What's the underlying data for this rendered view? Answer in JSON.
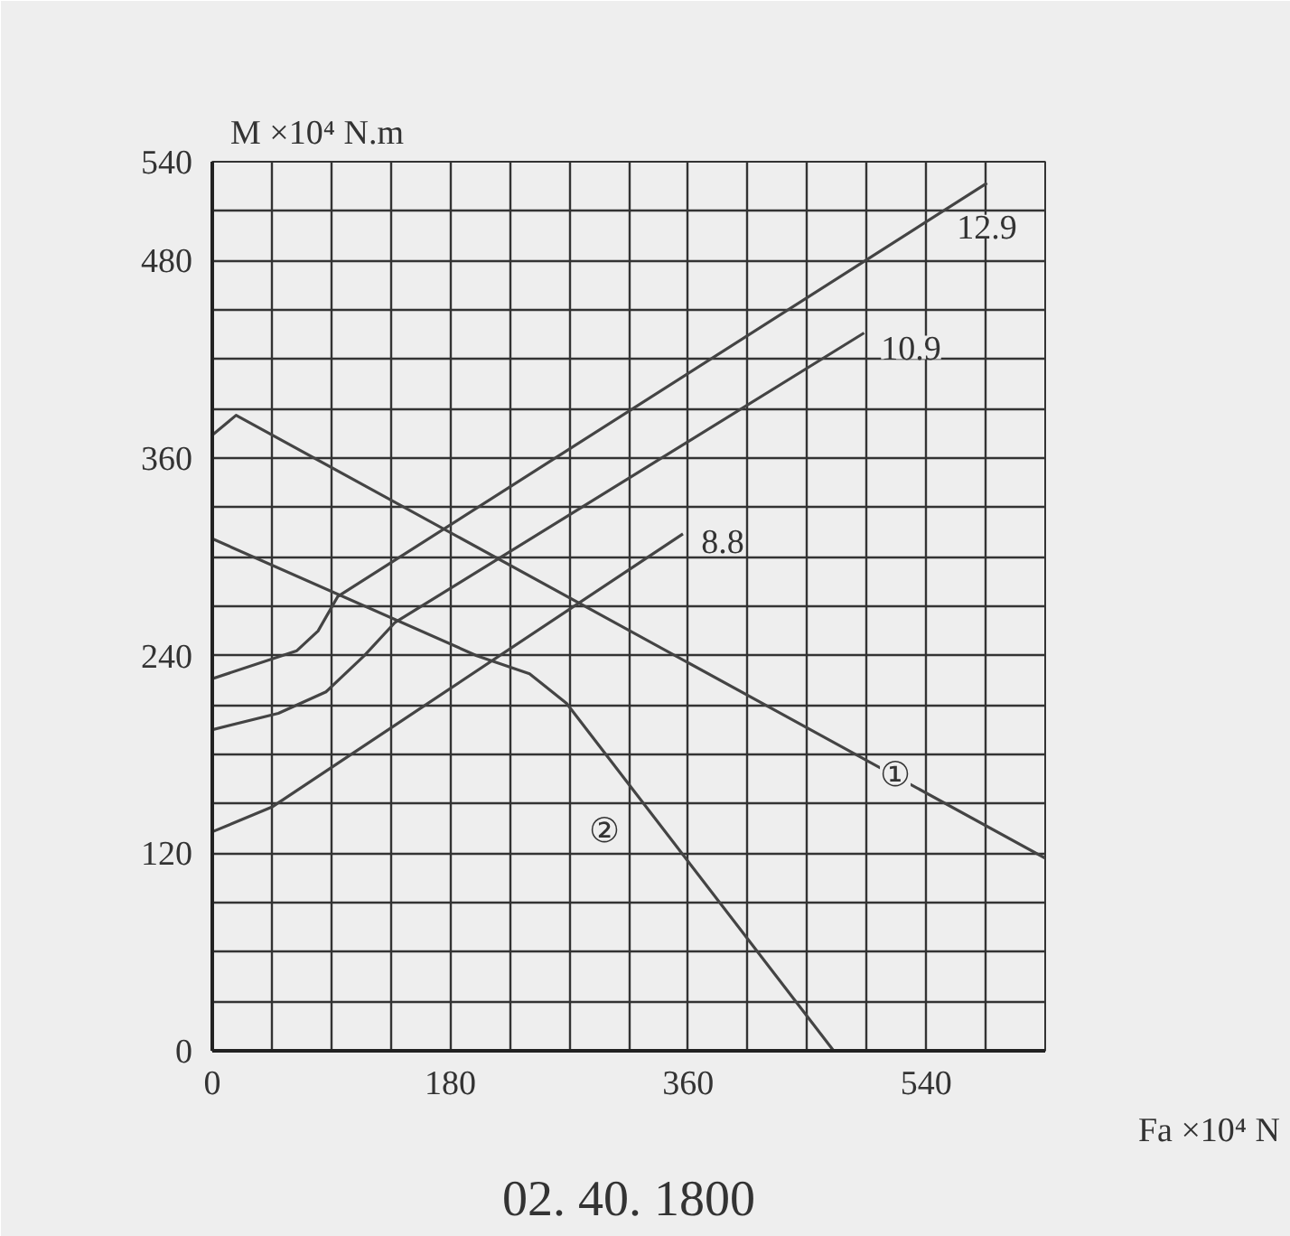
{
  "chart_data": {
    "type": "line",
    "xlabel": "Fa ×10⁴ N",
    "ylabel": "M ×10⁴ N.m",
    "xlim": [
      0,
      630
    ],
    "ylim": [
      0,
      540
    ],
    "xticks": [
      0,
      {
        "value": 45,
        "label": null
      },
      {
        "value": 90,
        "label": null
      },
      {
        "value": 135,
        "label": null
      },
      180,
      {
        "value": 225,
        "label": null
      },
      {
        "value": 270,
        "label": null
      },
      {
        "value": 315,
        "label": null
      },
      360,
      {
        "value": 405,
        "label": null
      },
      {
        "value": 450,
        "label": null
      },
      {
        "value": 495,
        "label": null
      },
      540,
      {
        "value": 585,
        "label": null
      },
      {
        "value": 630,
        "label": null
      }
    ],
    "yticks": [
      0,
      {
        "value": 30,
        "label": null
      },
      {
        "value": 60,
        "label": null
      },
      {
        "value": 90,
        "label": null
      },
      120,
      {
        "value": 150,
        "label": null
      },
      {
        "value": 180,
        "label": null
      },
      {
        "value": 210,
        "label": null
      },
      240,
      {
        "value": 270,
        "label": null
      },
      {
        "value": 300,
        "label": null
      },
      {
        "value": 330,
        "label": null
      },
      360,
      {
        "value": 390,
        "label": null
      },
      {
        "value": 420,
        "label": null
      },
      {
        "value": 450,
        "label": null
      },
      480,
      {
        "value": 510,
        "label": null
      },
      540
    ],
    "grid": true,
    "legend": false,
    "marker": "none",
    "line_style": "solid",
    "series": [
      {
        "name": "①",
        "color": "#444444",
        "x": [
          0,
          18,
          630
        ],
        "values": [
          374,
          386,
          117
        ]
      },
      {
        "name": "②",
        "color": "#444444",
        "x": [
          0,
          200,
          240,
          268,
          470
        ],
        "values": [
          311,
          240,
          229,
          211,
          0
        ]
      },
      {
        "name": "8.8",
        "color": "#444444",
        "x": [
          0,
          45,
          356
        ],
        "values": [
          133,
          148,
          314
        ]
      },
      {
        "name": "10.9",
        "color": "#444444",
        "x": [
          0,
          50,
          86,
          115,
          138,
          493
        ],
        "values": [
          195,
          205,
          218,
          240,
          260,
          436
        ]
      },
      {
        "name": "12.9",
        "color": "#444444",
        "x": [
          0,
          64,
          80,
          95,
          586
        ],
        "values": [
          226,
          243,
          255,
          276,
          527
        ]
      }
    ],
    "annotations": [
      "02. 40. 1800"
    ]
  }
}
